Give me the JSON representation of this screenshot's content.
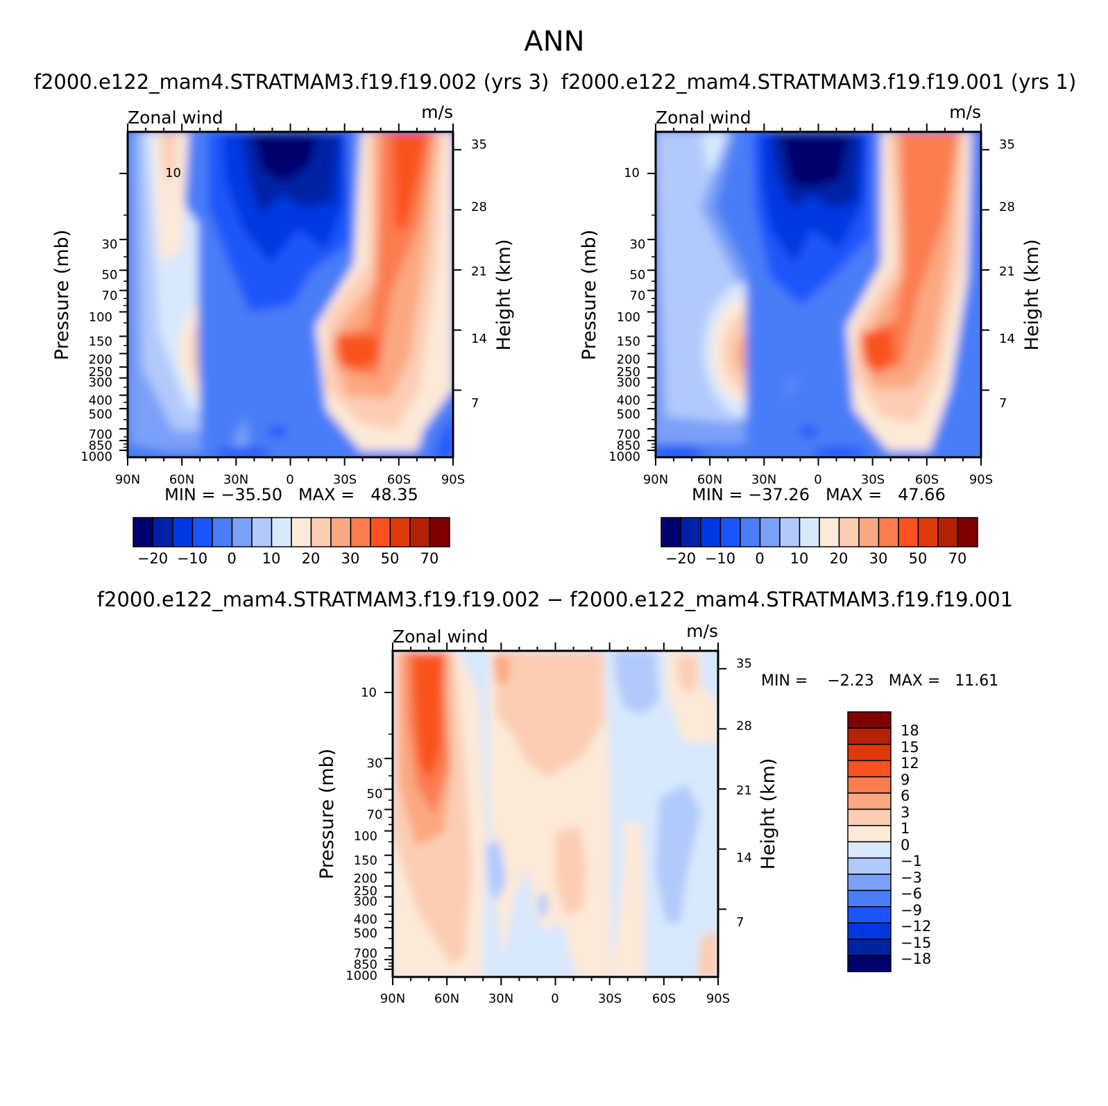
{
  "figure": {
    "title": "ANN"
  },
  "chart_data": [
    {
      "type": "heatmap",
      "subtitle": "f2000.e122_mam4.STRATMAM3.f19.f19.002 (yrs 3)",
      "left_label": "Zonal wind",
      "right_label": "m/s",
      "xlabel": "",
      "ylabel": "Pressure (mb)",
      "ylabel_right": "Height (km)",
      "x_ticks": [
        "90N",
        "60N",
        "30N",
        "0",
        "30S",
        "60S",
        "90S"
      ],
      "y_ticks": [
        "10",
        "30",
        "50",
        "70",
        "100",
        "150",
        "200",
        "250",
        "300",
        "400",
        "500",
        "700",
        "850",
        "1000"
      ],
      "y_right_ticks": [
        "35",
        "28",
        "21",
        "14",
        "7"
      ],
      "stats_text": "MIN = −35.50   MAX =   48.35",
      "min": -35.5,
      "max": 48.35,
      "colorbar_labels": [
        "−20",
        "−10",
        "0",
        "10",
        "20",
        "30",
        "50",
        "70"
      ],
      "features": [
        {
          "center": [
            "45N",
            200
          ],
          "value": 20
        },
        {
          "center": [
            "35S",
            200
          ],
          "value": 30
        },
        {
          "center": [
            "55S",
            7
          ],
          "value": 40
        },
        {
          "center": [
            "0",
            7
          ],
          "value": -30
        }
      ]
    },
    {
      "type": "heatmap",
      "subtitle": "f2000.e122_mam4.STRATMAM3.f19.f19.001 (yrs 1)",
      "left_label": "Zonal wind",
      "right_label": "m/s",
      "xlabel": "",
      "ylabel": "Pressure (mb)",
      "ylabel_right": "Height (km)",
      "x_ticks": [
        "90N",
        "60N",
        "30N",
        "0",
        "30S",
        "60S",
        "90S"
      ],
      "y_ticks": [
        "10",
        "30",
        "50",
        "70",
        "100",
        "150",
        "200",
        "250",
        "300",
        "400",
        "500",
        "700",
        "850",
        "1000"
      ],
      "y_right_ticks": [
        "35",
        "28",
        "21",
        "14",
        "7"
      ],
      "stats_text": "MIN = −37.26   MAX =   47.66",
      "min": -37.26,
      "max": 47.66,
      "colorbar_labels": [
        "−20",
        "−10",
        "0",
        "10",
        "20",
        "30",
        "50",
        "70"
      ],
      "features": [
        {
          "center": [
            "45N",
            200
          ],
          "value": 20
        },
        {
          "center": [
            "35S",
            200
          ],
          "value": 30
        },
        {
          "center": [
            "55S",
            7
          ],
          "value": 40
        },
        {
          "center": [
            "0",
            7
          ],
          "value": -30
        }
      ]
    },
    {
      "type": "heatmap",
      "subtitle": "f2000.e122_mam4.STRATMAM3.f19.f19.002 − f2000.e122_mam4.STRATMAM3.f19.f19.001",
      "left_label": "Zonal wind",
      "right_label": "m/s",
      "xlabel": "",
      "ylabel": "Pressure (mb)",
      "ylabel_right": "Height (km)",
      "x_ticks": [
        "90N",
        "60N",
        "30N",
        "0",
        "30S",
        "60S",
        "90S"
      ],
      "y_ticks": [
        "10",
        "30",
        "50",
        "70",
        "100",
        "150",
        "200",
        "250",
        "300",
        "400",
        "500",
        "700",
        "850",
        "1000"
      ],
      "y_right_ticks": [
        "35",
        "28",
        "21",
        "14",
        "7"
      ],
      "stats_text": "MIN =    −2.23   MAX =   11.61",
      "min": -2.23,
      "max": 11.61,
      "colorbar_labels": [
        "18",
        "15",
        "12",
        "9",
        "6",
        "3",
        "1",
        "0",
        "−1",
        "−3",
        "−6",
        "−9",
        "−12",
        "−15",
        "−18"
      ]
    }
  ],
  "colors": {
    "ramp": [
      "#00006e",
      "#0023a5",
      "#0039e1",
      "#1c56fa",
      "#4a7df7",
      "#7ba0f8",
      "#b2c9fb",
      "#d8e8fd",
      "#fde9d8",
      "#fccdb3",
      "#fba881",
      "#fb7d4f",
      "#f9521e",
      "#df3a07",
      "#b32304",
      "#7e0000"
    ],
    "axis": "#000000",
    "background": "#ffffff"
  }
}
